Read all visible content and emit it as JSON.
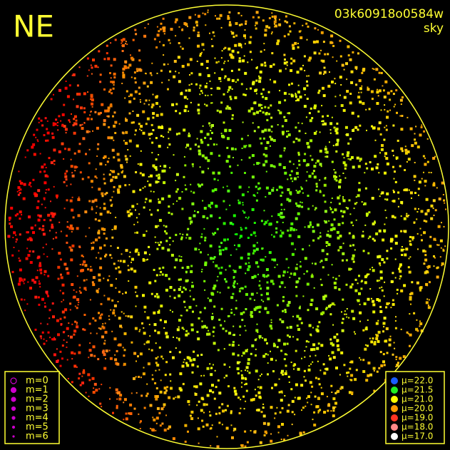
{
  "header": {
    "direction": "NE",
    "frame_id": "03k60918o0584w",
    "image_type": "sky"
  },
  "magnitude_legend": [
    {
      "label": "m=0",
      "color": "#cc00cc"
    },
    {
      "label": "m=1",
      "color": "#cc00cc"
    },
    {
      "label": "m=2",
      "color": "#cc00cc"
    },
    {
      "label": "m=3",
      "color": "#cc00cc"
    },
    {
      "label": "m=4",
      "color": "#cc00cc"
    },
    {
      "label": "m=5",
      "color": "#cc00cc"
    },
    {
      "label": "m=6",
      "color": "#cc00cc"
    }
  ],
  "brightness_legend": [
    {
      "label": "μ=22.0",
      "color": "#1a5cff"
    },
    {
      "label": "μ=21.5",
      "color": "#22ee22"
    },
    {
      "label": "μ=21.0",
      "color": "#ffff00"
    },
    {
      "label": "μ=20.0",
      "color": "#ff9900"
    },
    {
      "label": "μ=19.0",
      "color": "#ff3322"
    },
    {
      "label": "μ=18.0",
      "color": "#ff8888"
    },
    {
      "label": "μ=17.0",
      "color": "#ffffff"
    }
  ]
}
